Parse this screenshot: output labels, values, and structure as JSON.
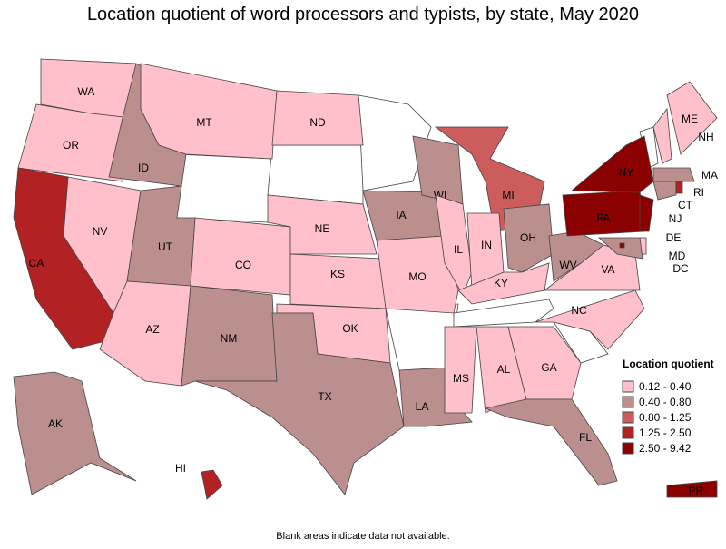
{
  "title": "Location quotient of word processors and typists, by state, May 2020",
  "legend": {
    "title": "Location quotient",
    "items": [
      {
        "label": "0.12 - 0.40",
        "color": "#ffc0cb"
      },
      {
        "label": "0.40 - 0.80",
        "color": "#bc8f8f"
      },
      {
        "label": "0.80 - 1.25",
        "color": "#cd5c5c"
      },
      {
        "label": "1.25 - 2.50",
        "color": "#b22222"
      },
      {
        "label": "2.50 - 9.42",
        "color": "#8b0000"
      }
    ]
  },
  "states": [
    {
      "name": "WA",
      "bin": 0
    },
    {
      "name": "OR",
      "bin": 0
    },
    {
      "name": "CA",
      "bin": 3
    },
    {
      "name": "NV",
      "bin": 0
    },
    {
      "name": "ID",
      "bin": 1
    },
    {
      "name": "MT",
      "bin": 0
    },
    {
      "name": "UT",
      "bin": 1
    },
    {
      "name": "CO",
      "bin": 0
    },
    {
      "name": "AZ",
      "bin": 0
    },
    {
      "name": "NM",
      "bin": 1
    },
    {
      "name": "ND",
      "bin": 0
    },
    {
      "name": "NE",
      "bin": 0
    },
    {
      "name": "KS",
      "bin": 0
    },
    {
      "name": "OK",
      "bin": 0
    },
    {
      "name": "TX",
      "bin": 1
    },
    {
      "name": "IA",
      "bin": 1
    },
    {
      "name": "MO",
      "bin": 0
    },
    {
      "name": "LA",
      "bin": 1
    },
    {
      "name": "WI",
      "bin": 1
    },
    {
      "name": "IL",
      "bin": 0
    },
    {
      "name": "MI",
      "bin": 2
    },
    {
      "name": "IN",
      "bin": 0
    },
    {
      "name": "OH",
      "bin": 1
    },
    {
      "name": "KY",
      "bin": 0
    },
    {
      "name": "MS",
      "bin": 0
    },
    {
      "name": "AL",
      "bin": 0
    },
    {
      "name": "GA",
      "bin": 0
    },
    {
      "name": "FL",
      "bin": 1
    },
    {
      "name": "NC",
      "bin": 0
    },
    {
      "name": "VA",
      "bin": 0
    },
    {
      "name": "WV",
      "bin": 1
    },
    {
      "name": "PA",
      "bin": 4
    },
    {
      "name": "NY",
      "bin": 4
    },
    {
      "name": "NJ",
      "bin": 4
    },
    {
      "name": "DE",
      "bin": 0
    },
    {
      "name": "MD",
      "bin": 1
    },
    {
      "name": "DC",
      "bin": 4
    },
    {
      "name": "ME",
      "bin": 0
    },
    {
      "name": "NH",
      "bin": 0
    },
    {
      "name": "MA",
      "bin": 1
    },
    {
      "name": "CT",
      "bin": 1
    },
    {
      "name": "RI",
      "bin": 3
    },
    {
      "name": "AK",
      "bin": 1
    },
    {
      "name": "HI",
      "bin": 3
    },
    {
      "name": "PR",
      "bin": 4
    }
  ],
  "footnote": "Blank areas indicate data not available."
}
